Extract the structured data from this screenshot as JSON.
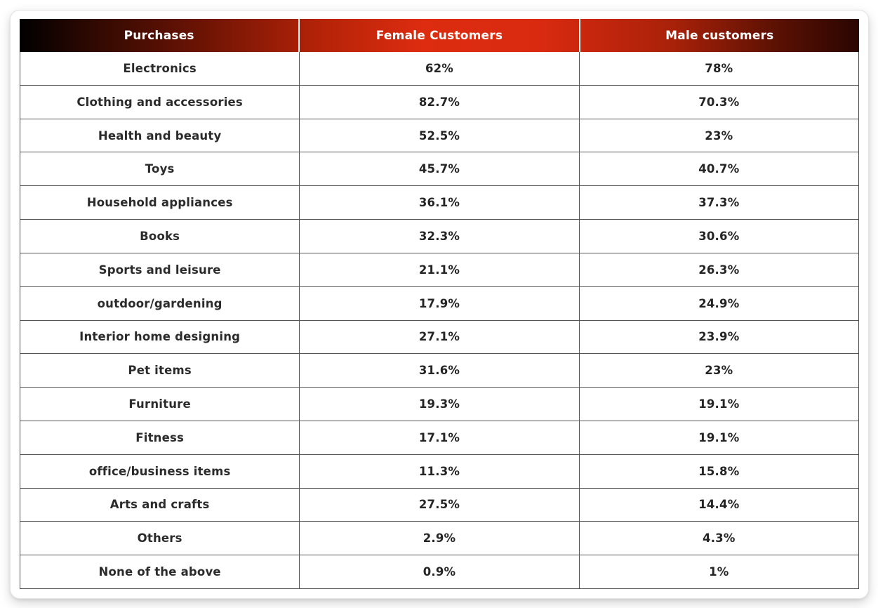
{
  "table": {
    "columns": [
      "Purchases",
      "Female Customers",
      "Male customers"
    ],
    "rows": [
      {
        "purchase": "Electronics",
        "female": "62%",
        "male": "78%"
      },
      {
        "purchase": "Clothing and accessories",
        "female": "82.7%",
        "male": "70.3%"
      },
      {
        "purchase": "Health and beauty",
        "female": "52.5%",
        "male": "23%"
      },
      {
        "purchase": "Toys",
        "female": "45.7%",
        "male": "40.7%"
      },
      {
        "purchase": "Household appliances",
        "female": "36.1%",
        "male": "37.3%"
      },
      {
        "purchase": "Books",
        "female": "32.3%",
        "male": "30.6%"
      },
      {
        "purchase": "Sports and leisure",
        "female": "21.1%",
        "male": "26.3%"
      },
      {
        "purchase": "outdoor/gardening",
        "female": "17.9%",
        "male": "24.9%"
      },
      {
        "purchase": "Interior home designing",
        "female": "27.1%",
        "male": "23.9%"
      },
      {
        "purchase": "Pet items",
        "female": "31.6%",
        "male": "23%"
      },
      {
        "purchase": "Furniture",
        "female": "19.3%",
        "male": "19.1%"
      },
      {
        "purchase": "Fitness",
        "female": "17.1%",
        "male": "19.1%"
      },
      {
        "purchase": "office/business items",
        "female": "11.3%",
        "male": "15.8%"
      },
      {
        "purchase": "Arts and crafts",
        "female": "27.5%",
        "male": "14.4%"
      },
      {
        "purchase": "Others",
        "female": "2.9%",
        "male": "4.3%"
      },
      {
        "purchase": "None of the above",
        "female": "0.9%",
        "male": "1%"
      }
    ]
  },
  "chart_data": {
    "type": "table",
    "title": "",
    "columns": [
      "Purchases",
      "Female Customers",
      "Male customers"
    ],
    "categories": [
      "Electronics",
      "Clothing and accessories",
      "Health and beauty",
      "Toys",
      "Household appliances",
      "Books",
      "Sports and leisure",
      "outdoor/gardening",
      "Interior home designing",
      "Pet items",
      "Furniture",
      "Fitness",
      "office/business items",
      "Arts and crafts",
      "Others",
      "None of the above"
    ],
    "series": [
      {
        "name": "Female Customers",
        "values": [
          62,
          82.7,
          52.5,
          45.7,
          36.1,
          32.3,
          21.1,
          17.9,
          27.1,
          31.6,
          19.3,
          17.1,
          11.3,
          27.5,
          2.9,
          0.9
        ]
      },
      {
        "name": "Male customers",
        "values": [
          78,
          70.3,
          23,
          40.7,
          37.3,
          30.6,
          26.3,
          24.9,
          23.9,
          23,
          19.1,
          19.1,
          15.8,
          14.4,
          4.3,
          1
        ]
      }
    ],
    "unit": "%"
  },
  "colors": {
    "header_gradient_left": "#000000",
    "header_gradient_peak": "#dd2c10",
    "header_gradient_right": "#2a0502",
    "header_text": "#ffffff",
    "header_divider": "#ffffff",
    "body_text": "#252525",
    "grid_border": "#565656",
    "card_background": "#ffffff"
  }
}
